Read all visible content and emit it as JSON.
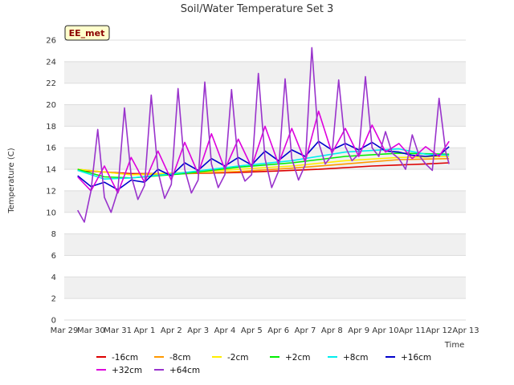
{
  "chart_data": {
    "type": "line",
    "title": "Soil/Water Temperature Set 3",
    "xlabel": "Time",
    "ylabel": "Temperature (C)",
    "site_label": "EE_met",
    "ylim": [
      0,
      26
    ],
    "yticks": [
      0,
      2,
      4,
      6,
      8,
      10,
      12,
      14,
      16,
      18,
      20,
      22,
      24,
      26
    ],
    "xlim": [
      "2024-03-29",
      "2024-04-13"
    ],
    "xticks": [
      "Mar 29",
      "Mar 30",
      "Mar 31",
      "Apr 1",
      "Apr 2",
      "Apr 3",
      "Apr 4",
      "Apr 5",
      "Apr 6",
      "Apr 7",
      "Apr 8",
      "Apr 9",
      "Apr 10",
      "Apr 11",
      "Apr 12",
      "Apr 13"
    ],
    "grid": "horizontal bands",
    "legend_position": "bottom",
    "series": [
      {
        "name": "-16cm",
        "color": "#dd0000",
        "points": [
          [
            "2024-03-29 12:00",
            13.9
          ],
          [
            "2024-03-31 12:00",
            13.6
          ],
          [
            "2024-04-02 12:00",
            13.6
          ],
          [
            "2024-04-04 12:00",
            13.7
          ],
          [
            "2024-04-06 12:00",
            13.9
          ],
          [
            "2024-04-07 12:00",
            14.0
          ],
          [
            "2024-04-09 12:00",
            14.3
          ],
          [
            "2024-04-10 12:00",
            14.4
          ],
          [
            "2024-04-11 12:00",
            14.5
          ],
          [
            "2024-04-12 09:00",
            14.6
          ]
        ]
      },
      {
        "name": "-8cm",
        "color": "#ff9900",
        "points": [
          [
            "2024-03-29 12:00",
            14.0
          ],
          [
            "2024-03-31 12:00",
            13.5
          ],
          [
            "2024-04-02 12:00",
            13.6
          ],
          [
            "2024-04-04 12:00",
            13.8
          ],
          [
            "2024-04-06 12:00",
            14.1
          ],
          [
            "2024-04-08 12:00",
            14.5
          ],
          [
            "2024-04-10 12:00",
            14.9
          ],
          [
            "2024-04-12 09:00",
            15.0
          ]
        ]
      },
      {
        "name": "-2cm",
        "color": "#ffee00",
        "points": [
          [
            "2024-03-29 12:00",
            14.0
          ],
          [
            "2024-03-31 12:00",
            13.5
          ],
          [
            "2024-04-02 12:00",
            13.7
          ],
          [
            "2024-04-04 12:00",
            14.0
          ],
          [
            "2024-04-06 12:00",
            14.3
          ],
          [
            "2024-04-08 12:00",
            14.8
          ],
          [
            "2024-04-10 12:00",
            15.1
          ],
          [
            "2024-04-12 09:00",
            15.2
          ]
        ]
      },
      {
        "name": "+2cm",
        "color": "#00ee00",
        "points": [
          [
            "2024-03-29 12:00",
            14.0
          ],
          [
            "2024-03-30 12:00",
            13.3
          ],
          [
            "2024-03-31 12:00",
            13.2
          ],
          [
            "2024-04-02 12:00",
            13.6
          ],
          [
            "2024-04-04 12:00",
            14.2
          ],
          [
            "2024-04-06 12:00",
            14.6
          ],
          [
            "2024-04-08 12:00",
            15.2
          ],
          [
            "2024-04-10 12:00",
            15.5
          ],
          [
            "2024-04-12 09:00",
            15.4
          ]
        ]
      },
      {
        "name": "+8cm",
        "color": "#00eeee",
        "points": [
          [
            "2024-03-29 12:00",
            13.9
          ],
          [
            "2024-03-30 12:00",
            13.1
          ],
          [
            "2024-03-31 12:00",
            13.2
          ],
          [
            "2024-04-02 12:00",
            13.7
          ],
          [
            "2024-04-04 12:00",
            14.3
          ],
          [
            "2024-04-06 12:00",
            14.8
          ],
          [
            "2024-04-08 12:00",
            15.6
          ],
          [
            "2024-04-10 12:00",
            15.9
          ],
          [
            "2024-04-11 12:00",
            15.4
          ],
          [
            "2024-04-12 09:00",
            15.3
          ]
        ]
      },
      {
        "name": "+16cm",
        "color": "#0000cc",
        "points": [
          [
            "2024-03-29 12:00",
            13.4
          ],
          [
            "2024-03-30 00:00",
            12.4
          ],
          [
            "2024-03-30 12:00",
            12.8
          ],
          [
            "2024-03-31 00:00",
            12.1
          ],
          [
            "2024-03-31 12:00",
            13.0
          ],
          [
            "2024-04-01 00:00",
            12.8
          ],
          [
            "2024-04-01 12:00",
            14.0
          ],
          [
            "2024-04-02 00:00",
            13.4
          ],
          [
            "2024-04-02 12:00",
            14.6
          ],
          [
            "2024-04-03 00:00",
            13.9
          ],
          [
            "2024-04-03 12:00",
            15.0
          ],
          [
            "2024-04-04 00:00",
            14.3
          ],
          [
            "2024-04-04 12:00",
            15.1
          ],
          [
            "2024-04-05 00:00",
            14.4
          ],
          [
            "2024-04-05 12:00",
            15.7
          ],
          [
            "2024-04-06 00:00",
            14.8
          ],
          [
            "2024-04-06 12:00",
            15.8
          ],
          [
            "2024-04-07 00:00",
            15.2
          ],
          [
            "2024-04-07 12:00",
            16.6
          ],
          [
            "2024-04-08 00:00",
            15.8
          ],
          [
            "2024-04-08 12:00",
            16.4
          ],
          [
            "2024-04-09 00:00",
            15.8
          ],
          [
            "2024-04-09 12:00",
            16.5
          ],
          [
            "2024-04-10 00:00",
            15.7
          ],
          [
            "2024-04-10 12:00",
            15.6
          ],
          [
            "2024-04-11 00:00",
            15.3
          ],
          [
            "2024-04-11 12:00",
            15.2
          ],
          [
            "2024-04-12 00:00",
            15.3
          ],
          [
            "2024-04-12 09:00",
            16.1
          ]
        ]
      },
      {
        "name": "+32cm",
        "color": "#dd00dd",
        "points": [
          [
            "2024-03-29 12:00",
            13.3
          ],
          [
            "2024-03-30 00:00",
            12.0
          ],
          [
            "2024-03-30 12:00",
            14.3
          ],
          [
            "2024-03-31 00:00",
            11.8
          ],
          [
            "2024-03-31 12:00",
            15.1
          ],
          [
            "2024-04-01 00:00",
            12.8
          ],
          [
            "2024-04-01 12:00",
            15.7
          ],
          [
            "2024-04-02 00:00",
            13.0
          ],
          [
            "2024-04-02 12:00",
            16.5
          ],
          [
            "2024-04-03 00:00",
            13.6
          ],
          [
            "2024-04-03 12:00",
            17.3
          ],
          [
            "2024-04-04 00:00",
            14.0
          ],
          [
            "2024-04-04 12:00",
            16.8
          ],
          [
            "2024-04-05 00:00",
            14.2
          ],
          [
            "2024-04-05 12:00",
            18.0
          ],
          [
            "2024-04-06 00:00",
            14.5
          ],
          [
            "2024-04-06 12:00",
            17.8
          ],
          [
            "2024-04-07 00:00",
            14.7
          ],
          [
            "2024-04-07 12:00",
            19.4
          ],
          [
            "2024-04-08 00:00",
            15.5
          ],
          [
            "2024-04-08 12:00",
            17.8
          ],
          [
            "2024-04-09 00:00",
            15.2
          ],
          [
            "2024-04-09 12:00",
            18.1
          ],
          [
            "2024-04-10 00:00",
            15.6
          ],
          [
            "2024-04-10 12:00",
            16.4
          ],
          [
            "2024-04-11 00:00",
            15.0
          ],
          [
            "2024-04-11 12:00",
            16.1
          ],
          [
            "2024-04-12 00:00",
            15.2
          ],
          [
            "2024-04-12 09:00",
            16.6
          ]
        ]
      },
      {
        "name": "+64cm",
        "color": "#9933cc",
        "points": [
          [
            "2024-03-29 12:00",
            10.2
          ],
          [
            "2024-03-29 18:00",
            9.1
          ],
          [
            "2024-03-30 00:00",
            12.0
          ],
          [
            "2024-03-30 06:00",
            17.7
          ],
          [
            "2024-03-30 12:00",
            11.4
          ],
          [
            "2024-03-30 18:00",
            10.0
          ],
          [
            "2024-03-31 00:00",
            12.0
          ],
          [
            "2024-03-31 06:00",
            19.7
          ],
          [
            "2024-03-31 12:00",
            13.4
          ],
          [
            "2024-03-31 18:00",
            11.2
          ],
          [
            "2024-04-01 00:00",
            12.5
          ],
          [
            "2024-04-01 06:00",
            20.9
          ],
          [
            "2024-04-01 12:00",
            13.8
          ],
          [
            "2024-04-01 18:00",
            11.3
          ],
          [
            "2024-04-02 00:00",
            12.6
          ],
          [
            "2024-04-02 06:00",
            21.5
          ],
          [
            "2024-04-02 12:00",
            14.0
          ],
          [
            "2024-04-02 18:00",
            11.8
          ],
          [
            "2024-04-03 00:00",
            13.0
          ],
          [
            "2024-04-03 06:00",
            22.1
          ],
          [
            "2024-04-03 12:00",
            14.5
          ],
          [
            "2024-04-03 18:00",
            12.3
          ],
          [
            "2024-04-04 00:00",
            13.5
          ],
          [
            "2024-04-04 06:00",
            21.4
          ],
          [
            "2024-04-04 12:00",
            14.5
          ],
          [
            "2024-04-04 18:00",
            12.9
          ],
          [
            "2024-04-05 00:00",
            13.5
          ],
          [
            "2024-04-05 06:00",
            22.9
          ],
          [
            "2024-04-05 12:00",
            15.0
          ],
          [
            "2024-04-05 18:00",
            12.3
          ],
          [
            "2024-04-06 00:00",
            13.8
          ],
          [
            "2024-04-06 06:00",
            22.4
          ],
          [
            "2024-04-06 12:00",
            15.0
          ],
          [
            "2024-04-06 18:00",
            13.0
          ],
          [
            "2024-04-07 00:00",
            14.4
          ],
          [
            "2024-04-07 06:00",
            25.3
          ],
          [
            "2024-04-07 12:00",
            16.5
          ],
          [
            "2024-04-07 18:00",
            14.5
          ],
          [
            "2024-04-08 00:00",
            15.3
          ],
          [
            "2024-04-08 06:00",
            22.3
          ],
          [
            "2024-04-08 12:00",
            16.1
          ],
          [
            "2024-04-08 18:00",
            14.8
          ],
          [
            "2024-04-09 00:00",
            15.4
          ],
          [
            "2024-04-09 06:00",
            22.6
          ],
          [
            "2024-04-09 12:00",
            16.0
          ],
          [
            "2024-04-09 18:00",
            15.2
          ],
          [
            "2024-04-10 00:00",
            17.5
          ],
          [
            "2024-04-10 06:00",
            15.5
          ],
          [
            "2024-04-10 12:00",
            15.0
          ],
          [
            "2024-04-10 18:00",
            14.0
          ],
          [
            "2024-04-11 00:00",
            17.2
          ],
          [
            "2024-04-11 06:00",
            15.3
          ],
          [
            "2024-04-11 12:00",
            14.5
          ],
          [
            "2024-04-11 18:00",
            13.9
          ],
          [
            "2024-04-12 00:00",
            20.6
          ],
          [
            "2024-04-12 06:00",
            15.6
          ],
          [
            "2024-04-12 09:00",
            14.5
          ]
        ]
      }
    ]
  }
}
